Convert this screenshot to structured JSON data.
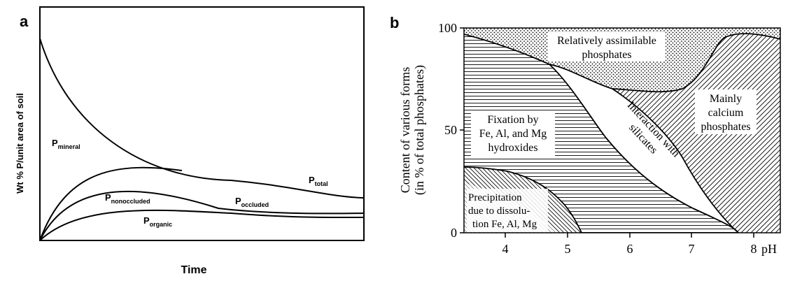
{
  "panel_a": {
    "letter": "a",
    "y_axis_label": "Wt %  P/unit area of soil",
    "x_axis_label": "Time",
    "curves": [
      {
        "main": "P",
        "sub": "mineral"
      },
      {
        "main": "P",
        "sub": "total"
      },
      {
        "main": "P",
        "sub": "nonoccluded"
      },
      {
        "main": "P",
        "sub": "occluded"
      },
      {
        "main": "P",
        "sub": "organic"
      }
    ]
  },
  "panel_b": {
    "letter": "b",
    "y_axis_label_line1": "Content of various forms",
    "y_axis_label_line2": "(in % of total phosphates)",
    "y_ticks": [
      "100",
      "50",
      "0"
    ],
    "x_ticks": [
      "4",
      "5",
      "6",
      "7",
      "8"
    ],
    "x_unit": "pH",
    "regions": [
      {
        "id": "assimilable",
        "lines": [
          "Relatively assimilable",
          "phosphates"
        ]
      },
      {
        "id": "fixation",
        "lines": [
          "Fixation by",
          "Fe, Al, and Mg",
          "hydroxides"
        ]
      },
      {
        "id": "silicates",
        "lines": [
          "Interaction with",
          "silicates"
        ]
      },
      {
        "id": "calcium",
        "lines": [
          "Mainly",
          "calcium",
          "phosphates"
        ]
      },
      {
        "id": "precipitation",
        "lines": [
          "Precipitation",
          "due to dissolu-",
          "tion Fe, Al, Mg"
        ]
      }
    ]
  },
  "colors": {
    "ink": "#000000",
    "background": "#ffffff"
  }
}
